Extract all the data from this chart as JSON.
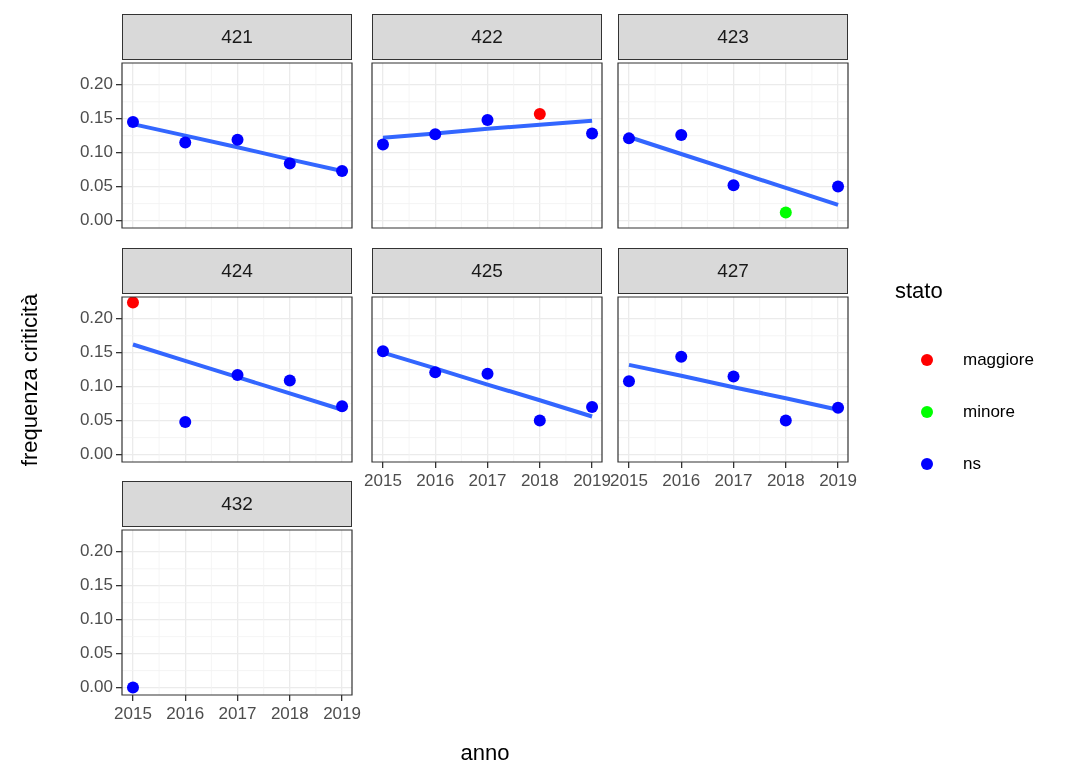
{
  "chart_data": [
    {
      "type": "scatter",
      "title": "421",
      "xlabel": "anno",
      "ylabel": "frequenza criticità",
      "x": [
        2015,
        2016,
        2017,
        2018,
        2019
      ],
      "xlim": [
        2014.79,
        2019.19
      ],
      "xticks": [
        2015,
        2016,
        2017,
        2018,
        2019
      ],
      "ylim": [
        -0.011,
        0.232
      ],
      "yticks": [
        {
          "value": 0,
          "label": "0.00"
        },
        {
          "value": 0.05,
          "label": "0.05"
        },
        {
          "value": 0.1,
          "label": "0.10"
        },
        {
          "value": 0.15,
          "label": "0.15"
        },
        {
          "value": 0.2,
          "label": "0.20"
        }
      ],
      "grid": true,
      "marker": "circle",
      "tick_labels": "y",
      "series": [
        {
          "color": "#0000ff",
          "values": [
            0.145,
            0.115,
            0.119,
            0.084,
            0.073
          ]
        },
        {
          "type": "line",
          "marker": "none",
          "color": "#3366ff",
          "values": [
            0.142,
            0.125,
            0.108,
            0.09,
            0.073
          ]
        }
      ]
    },
    {
      "type": "scatter",
      "title": "422",
      "x": [
        2015,
        2016,
        2017,
        2018,
        2019
      ],
      "xlim": [
        2014.79,
        2019.19
      ],
      "xticks": [
        2015,
        2016,
        2017,
        2018,
        2019
      ],
      "ylim": [
        -0.011,
        0.232
      ],
      "yticks": [
        0,
        0.05,
        0.1,
        0.15,
        0.2
      ],
      "grid": true,
      "marker": "circle",
      "tick_labels": false,
      "series": [
        {
          "color": "#ff0000",
          "values": [
            null,
            null,
            null,
            0.157,
            null
          ]
        },
        {
          "color": "#0000ff",
          "values": [
            0.112,
            0.127,
            0.148,
            null,
            0.128
          ]
        },
        {
          "type": "line",
          "marker": "none",
          "color": "#3366ff",
          "values": [
            0.122,
            0.128,
            0.135,
            0.141,
            0.147
          ]
        }
      ]
    },
    {
      "type": "scatter",
      "title": "423",
      "x": [
        2015,
        2016,
        2017,
        2018,
        2019
      ],
      "xlim": [
        2014.79,
        2019.19
      ],
      "xticks": [
        2015,
        2016,
        2017,
        2018,
        2019
      ],
      "ylim": [
        -0.011,
        0.232
      ],
      "yticks": [
        0,
        0.05,
        0.1,
        0.15,
        0.2
      ],
      "grid": true,
      "marker": "circle",
      "tick_labels": false,
      "series": [
        {
          "color": "#00ff00",
          "values": [
            null,
            null,
            null,
            0.012,
            null
          ]
        },
        {
          "color": "#0000ff",
          "values": [
            0.121,
            0.126,
            0.052,
            null,
            0.05
          ]
        },
        {
          "type": "line",
          "marker": "none",
          "color": "#3366ff",
          "values": [
            0.123,
            0.098,
            0.073,
            0.048,
            0.023
          ]
        }
      ]
    },
    {
      "type": "scatter",
      "title": "424",
      "x": [
        2015,
        2016,
        2017,
        2018,
        2019
      ],
      "xlim": [
        2014.79,
        2019.19
      ],
      "xticks": [
        2015,
        2016,
        2017,
        2018,
        2019
      ],
      "ylim": [
        -0.011,
        0.232
      ],
      "yticks": [
        {
          "value": 0,
          "label": "0.00"
        },
        {
          "value": 0.05,
          "label": "0.05"
        },
        {
          "value": 0.1,
          "label": "0.10"
        },
        {
          "value": 0.15,
          "label": "0.15"
        },
        {
          "value": 0.2,
          "label": "0.20"
        }
      ],
      "grid": true,
      "marker": "circle",
      "tick_labels": "y",
      "series": [
        {
          "color": "#ff0000",
          "values": [
            0.224,
            null,
            null,
            null,
            null
          ]
        },
        {
          "color": "#0000ff",
          "values": [
            null,
            0.048,
            0.117,
            0.109,
            0.071
          ]
        },
        {
          "type": "line",
          "marker": "none",
          "color": "#3366ff",
          "values": [
            0.162,
            0.138,
            0.114,
            0.09,
            0.066
          ]
        }
      ]
    },
    {
      "type": "scatter",
      "title": "425",
      "x": [
        2015,
        2016,
        2017,
        2018,
        2019
      ],
      "xlim": [
        2014.79,
        2019.19
      ],
      "xticks": [
        2015,
        2016,
        2017,
        2018,
        2019
      ],
      "ylim": [
        -0.011,
        0.232
      ],
      "yticks": [
        0,
        0.05,
        0.1,
        0.15,
        0.2
      ],
      "grid": true,
      "marker": "circle",
      "tick_labels": "x",
      "series": [
        {
          "color": "#0000ff",
          "values": [
            0.152,
            0.121,
            0.119,
            0.05,
            0.07
          ]
        },
        {
          "type": "line",
          "marker": "none",
          "color": "#3366ff",
          "values": [
            0.15,
            0.127,
            0.103,
            0.08,
            0.056
          ]
        }
      ]
    },
    {
      "type": "scatter",
      "title": "427",
      "legend_title": "stato",
      "legend": "right",
      "x": [
        2015,
        2016,
        2017,
        2018,
        2019
      ],
      "xlim": [
        2014.79,
        2019.19
      ],
      "xticks": [
        2015,
        2016,
        2017,
        2018,
        2019
      ],
      "ylim": [
        -0.011,
        0.232
      ],
      "yticks": [
        0,
        0.05,
        0.1,
        0.15,
        0.2
      ],
      "grid": true,
      "marker": "circle",
      "tick_labels": "x",
      "series": [
        {
          "name": "maggiore",
          "color": "#ff0000",
          "values": [
            null,
            null,
            null,
            null,
            null
          ]
        },
        {
          "name": "minore",
          "color": "#00ff00",
          "values": [
            null,
            null,
            null,
            null,
            null
          ]
        },
        {
          "name": "ns",
          "color": "#0000ff",
          "values": [
            0.108,
            0.144,
            0.115,
            0.05,
            0.069
          ]
        },
        {
          "type": "line",
          "marker": "none",
          "color": "#3366ff",
          "values": [
            0.132,
            0.116,
            0.099,
            0.083,
            0.066
          ]
        }
      ]
    },
    {
      "type": "scatter",
      "title": "432",
      "x": [
        2015
      ],
      "xlim": [
        2014.79,
        2019.19
      ],
      "xticks": [
        2015,
        2016,
        2017,
        2018,
        2019
      ],
      "ylim": [
        -0.011,
        0.232
      ],
      "yticks": [
        {
          "value": 0,
          "label": "0.00"
        },
        {
          "value": 0.05,
          "label": "0.05"
        },
        {
          "value": 0.1,
          "label": "0.10"
        },
        {
          "value": 0.15,
          "label": "0.15"
        },
        {
          "value": 0.2,
          "label": "0.20"
        }
      ],
      "grid": true,
      "marker": "circle",
      "series": [
        {
          "color": "#0000ff",
          "values": [
            0
          ]
        }
      ]
    }
  ]
}
